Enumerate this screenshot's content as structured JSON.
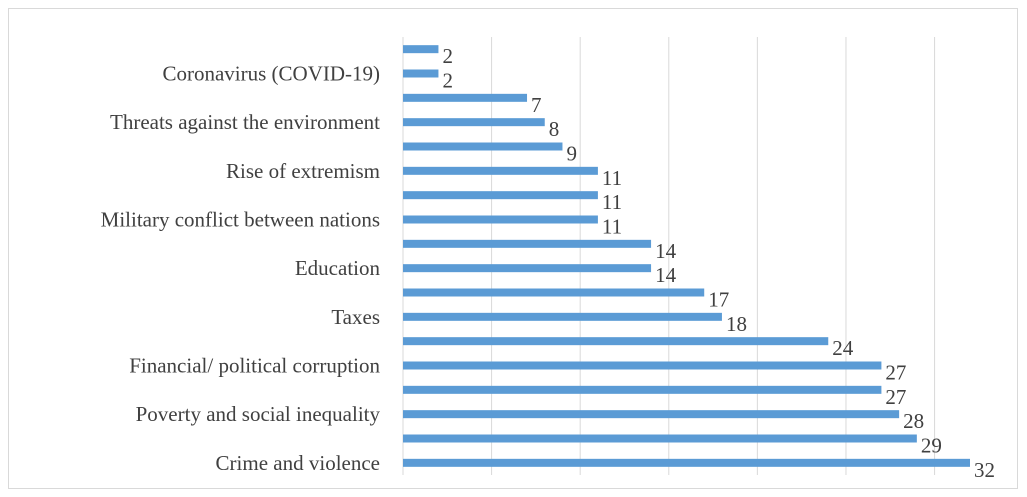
{
  "chart_data": {
    "type": "bar",
    "orientation": "horizontal",
    "title": "",
    "xlabel": "",
    "ylabel": "",
    "grid": true,
    "legend": "none",
    "bar_color": "#5b9bd5",
    "grid_color": "#d9d9d9",
    "xlim": [
      0,
      32
    ],
    "categories": [
      "Crime and violence",
      "",
      "Poverty and social inequality",
      "",
      "Financial/ political corruption",
      "",
      "Taxes",
      "",
      "Education",
      "",
      "Military conflict between nations",
      "",
      "Rise of extremism",
      "",
      "Threats against the environment",
      "",
      "Coronavirus (COVID-19)",
      ""
    ],
    "values": [
      32,
      29,
      28,
      27,
      27,
      24,
      18,
      17,
      14,
      14,
      11,
      11,
      11,
      9,
      8,
      7,
      2,
      2
    ]
  }
}
